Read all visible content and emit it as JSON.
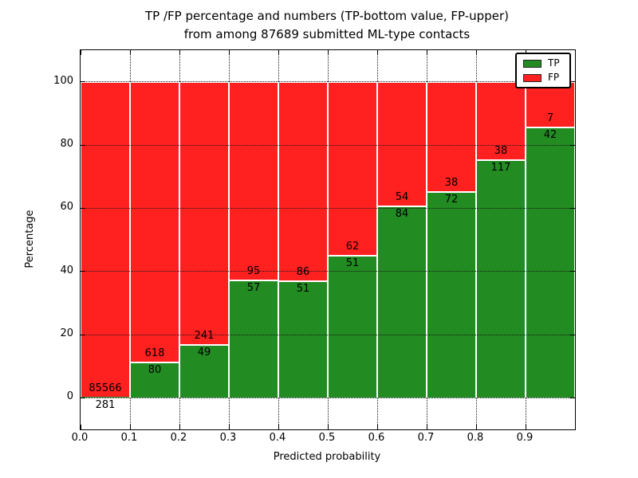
{
  "figure": {
    "title_line1": "TP /FP percentage and numbers (TP-bottom value, FP-upper)",
    "title_line2": "from among 87689 submitted ML-type contacts"
  },
  "chart_data": {
    "type": "bar",
    "stacked": true,
    "normalized_to_percent": true,
    "title": "TP /FP percentage and numbers (TP-bottom value, FP-upper) from among 87689 submitted ML-type contacts",
    "xlabel": "Predicted probability",
    "ylabel": "Percentage",
    "total_contacts": 87689,
    "categories": [
      0.0,
      0.1,
      0.2,
      0.3,
      0.4,
      0.5,
      0.6,
      0.7,
      0.8,
      0.9
    ],
    "bin_width": 0.1,
    "series": [
      {
        "name": "TP",
        "color": "#228b22",
        "counts": [
          281,
          80,
          49,
          57,
          51,
          51,
          84,
          72,
          117,
          42
        ]
      },
      {
        "name": "FP",
        "color": "#ff2020",
        "counts": [
          85566,
          618,
          241,
          95,
          86,
          62,
          54,
          38,
          38,
          7
        ]
      }
    ],
    "annotation_note": "TP count drawn below segment boundary, FP count above it",
    "xlim": [
      0.0,
      1.0
    ],
    "ylim": [
      -10,
      110
    ],
    "xticks": [
      0.0,
      0.1,
      0.2,
      0.3,
      0.4,
      0.5,
      0.6,
      0.7,
      0.8,
      0.9
    ],
    "yticks": [
      0,
      20,
      40,
      60,
      80,
      100
    ],
    "grid": true,
    "grid_style": "dotted",
    "legend": {
      "position": "upper right",
      "items": [
        {
          "label": "TP",
          "color": "#228b22"
        },
        {
          "label": "FP",
          "color": "#ff2020"
        }
      ]
    }
  }
}
